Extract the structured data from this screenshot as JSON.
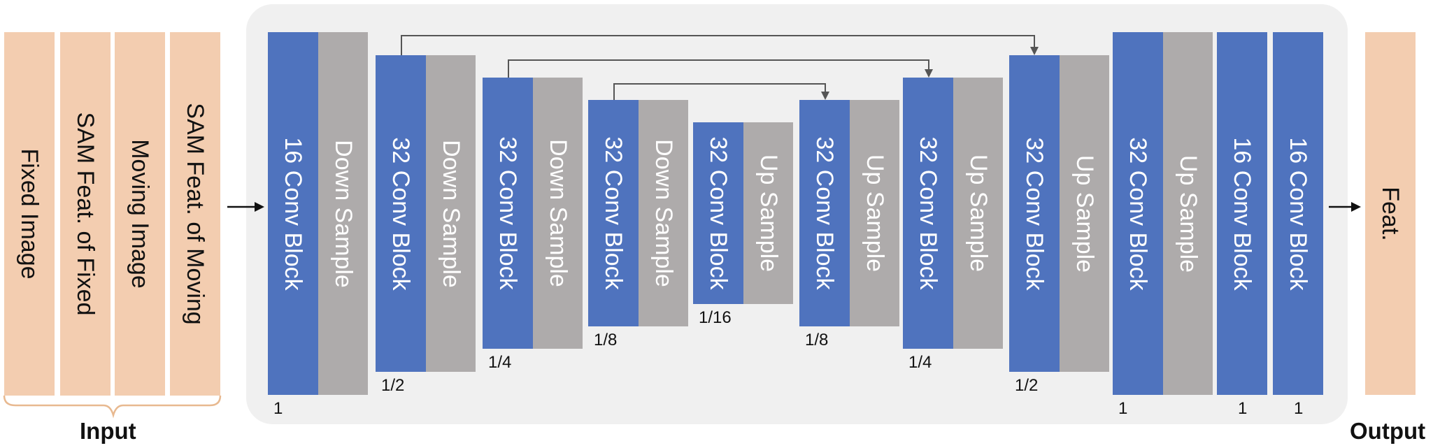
{
  "inputs": [
    "Fixed Image",
    "SAM Feat. of Fixed",
    "Moving Image",
    "SAM Feat. of Moving"
  ],
  "input_label": "Input",
  "output": "Feat.",
  "output_label": "Output",
  "blocks": [
    {
      "conv": "16 Conv Block",
      "sample": "Down Sample",
      "scale": "1"
    },
    {
      "conv": "32 Conv Block",
      "sample": "Down Sample",
      "scale": "1/2"
    },
    {
      "conv": "32 Conv Block",
      "sample": "Down Sample",
      "scale": "1/4"
    },
    {
      "conv": "32 Conv Block",
      "sample": "Down Sample",
      "scale": "1/8"
    },
    {
      "conv": "32 Conv Block",
      "sample": "Up Sample",
      "scale": "1/16"
    },
    {
      "conv": "32 Conv Block",
      "sample": "Up Sample",
      "scale": "1/8"
    },
    {
      "conv": "32 Conv Block",
      "sample": "Up Sample",
      "scale": "1/4"
    },
    {
      "conv": "32 Conv Block",
      "sample": "Up Sample",
      "scale": "1/2"
    },
    {
      "conv": "32 Conv Block",
      "sample": "Up Sample",
      "scale": "1"
    }
  ],
  "final_blocks": [
    {
      "conv": "16 Conv Block",
      "scale": "1"
    },
    {
      "conv": "16 Conv Block",
      "scale": "1"
    }
  ],
  "colors": {
    "input_fill": "#f3cdb0",
    "conv_fill": "#4f73be",
    "sample_fill": "#aeabab",
    "panel_fill": "#f0f0f0",
    "connector": "#555555"
  }
}
